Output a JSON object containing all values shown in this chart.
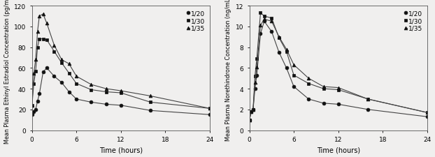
{
  "ee_time": [
    0,
    0.25,
    0.5,
    0.75,
    1,
    1.5,
    2,
    3,
    4,
    5,
    6,
    8,
    10,
    12,
    16,
    24
  ],
  "ee_1_20": [
    15,
    18,
    20,
    28,
    35,
    56,
    60,
    52,
    46,
    37,
    30,
    27,
    25,
    24,
    19,
    15
  ],
  "ee_1_30": [
    24,
    45,
    57,
    80,
    88,
    88,
    87,
    76,
    65,
    55,
    45,
    39,
    37,
    36,
    27,
    21
  ],
  "ee_1_35": [
    24,
    55,
    68,
    95,
    110,
    112,
    103,
    82,
    68,
    64,
    52,
    44,
    40,
    38,
    33,
    21
  ],
  "net_time": [
    0,
    0.25,
    0.5,
    0.75,
    1,
    1.5,
    2,
    3,
    4,
    5,
    6,
    8,
    10,
    12,
    16,
    24
  ],
  "net_1_20": [
    1.0,
    1.8,
    2.0,
    4.0,
    5.3,
    9.3,
    10.5,
    9.5,
    7.5,
    6.0,
    4.2,
    3.0,
    2.6,
    2.5,
    2.0,
    1.3
  ],
  "net_1_30": [
    1.0,
    1.8,
    2.0,
    5.2,
    6.9,
    11.3,
    11.0,
    10.8,
    8.9,
    7.6,
    5.3,
    4.5,
    4.0,
    3.9,
    3.0,
    1.7
  ],
  "net_1_35": [
    1.0,
    1.8,
    2.0,
    4.6,
    6.1,
    10.1,
    10.7,
    10.5,
    9.0,
    7.8,
    6.3,
    5.0,
    4.2,
    4.1,
    3.0,
    1.7
  ],
  "ylabel_left": "Mean Plasma Ethinyl Estradiol Concentration (pg/mL)",
  "ylabel_right": "Mean Plasma Norethindrone Concentration (ng/mL)",
  "xlabel": "Time (hours)",
  "ylim_left": [
    0,
    120
  ],
  "ylim_right": [
    0,
    12
  ],
  "yticks_left": [
    0,
    20,
    40,
    60,
    80,
    100,
    120
  ],
  "yticks_right": [
    0,
    2,
    4,
    6,
    8,
    10,
    12
  ],
  "xticks": [
    0,
    6,
    12,
    18,
    24
  ],
  "legend_labels": [
    "1/20",
    "1/30",
    "1/35"
  ],
  "marker_circle": "o",
  "marker_square": "s",
  "marker_triangle": "^",
  "line_color": "#444444",
  "marker_color": "#111111",
  "bg_color": "#f0efee"
}
